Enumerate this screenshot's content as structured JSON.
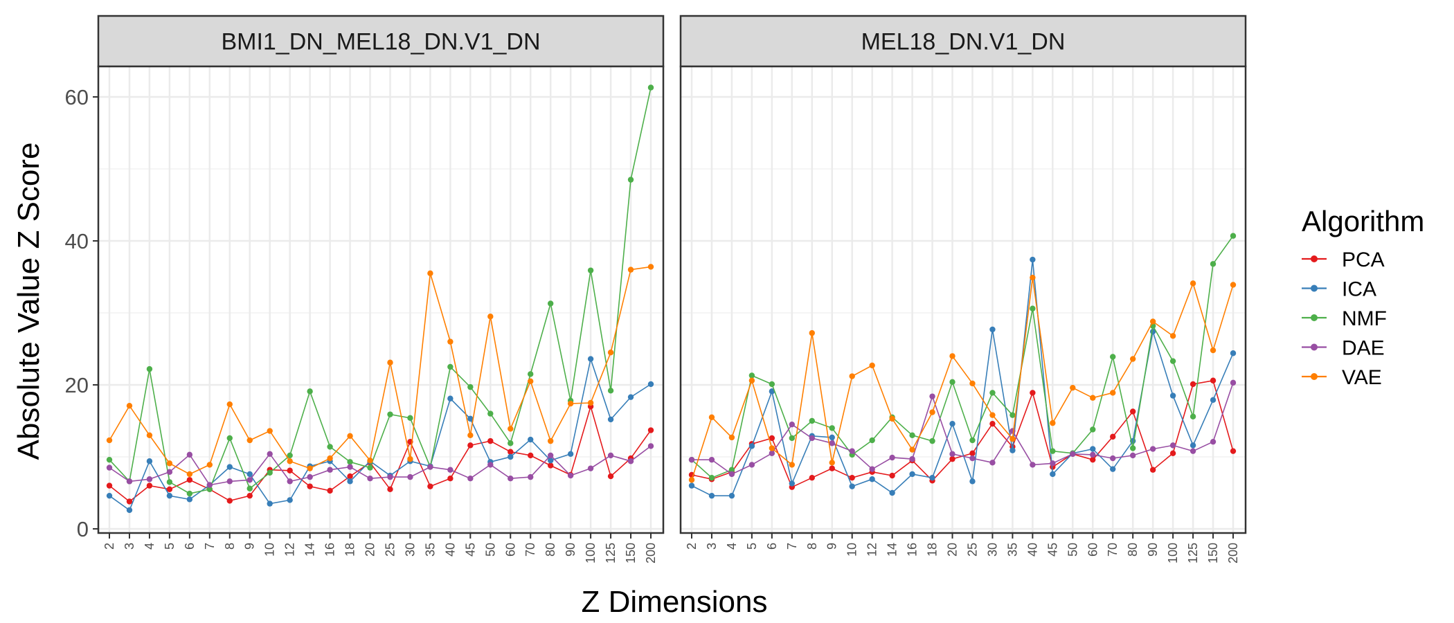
{
  "chart_data": {
    "type": "line",
    "y_label": "Absolute Value Z Score",
    "x_label": "Z Dimensions",
    "y_range": [
      0,
      65
    ],
    "y_ticks": [
      0,
      20,
      40,
      60
    ],
    "grid": true,
    "legend": {
      "title": "Algorithm",
      "placement": "right"
    },
    "categories": [
      "2",
      "3",
      "4",
      "5",
      "6",
      "7",
      "8",
      "9",
      "10",
      "12",
      "14",
      "16",
      "18",
      "20",
      "25",
      "30",
      "35",
      "40",
      "45",
      "50",
      "60",
      "70",
      "80",
      "90",
      "100",
      "125",
      "150",
      "200"
    ],
    "series_meta": [
      {
        "name": "PCA",
        "color": "#e41a1c"
      },
      {
        "name": "ICA",
        "color": "#377eb8"
      },
      {
        "name": "NMF",
        "color": "#4daf4a"
      },
      {
        "name": "DAE",
        "color": "#984ea3"
      },
      {
        "name": "VAE",
        "color": "#ff7f00"
      }
    ],
    "panels": [
      {
        "title": "BMI1_DN_MEL18_DN.V1_DN",
        "series": [
          {
            "name": "PCA",
            "values": [
              6.0,
              3.8,
              6.0,
              5.5,
              6.8,
              5.5,
              3.9,
              4.6,
              8.2,
              8.1,
              5.9,
              5.3,
              7.3,
              9.2,
              5.5,
              12.1,
              5.9,
              7.0,
              11.6,
              12.2,
              10.7,
              10.2,
              8.8,
              7.5,
              17.0,
              7.3,
              9.8,
              13.7
            ]
          },
          {
            "name": "ICA",
            "values": [
              4.6,
              2.6,
              9.4,
              4.6,
              4.1,
              6.1,
              8.6,
              7.6,
              3.5,
              4.0,
              8.7,
              9.4,
              6.6,
              9.4,
              7.4,
              9.4,
              8.7,
              18.1,
              15.3,
              9.3,
              10.0,
              12.4,
              9.5,
              10.4,
              23.6,
              15.2,
              18.3,
              20.1
            ]
          },
          {
            "name": "NMF",
            "values": [
              9.6,
              6.6,
              22.2,
              6.5,
              4.9,
              5.5,
              12.6,
              5.6,
              7.8,
              10.2,
              19.1,
              11.4,
              9.3,
              8.5,
              15.9,
              15.4,
              8.6,
              22.5,
              19.7,
              16.0,
              11.9,
              21.5,
              31.3,
              17.8,
              35.9,
              19.2,
              48.5,
              61.3
            ]
          },
          {
            "name": "DAE",
            "values": [
              8.5,
              6.6,
              6.9,
              7.9,
              10.3,
              6.1,
              6.6,
              6.8,
              10.4,
              6.6,
              7.2,
              8.2,
              8.6,
              7.0,
              7.2,
              7.2,
              8.6,
              8.2,
              7.0,
              8.9,
              7.0,
              7.2,
              10.2,
              7.4,
              8.4,
              10.2,
              9.4,
              11.5
            ]
          },
          {
            "name": "VAE",
            "values": [
              12.3,
              17.1,
              13.0,
              9.1,
              7.6,
              8.9,
              17.3,
              12.3,
              13.6,
              9.4,
              8.4,
              9.8,
              12.9,
              9.5,
              23.1,
              9.7,
              35.5,
              26.0,
              13.0,
              29.5,
              13.9,
              20.5,
              12.2,
              17.4,
              17.5,
              24.5,
              36.0,
              36.4
            ]
          }
        ]
      },
      {
        "title": "MEL18_DN.V1_DN",
        "series": [
          {
            "name": "PCA",
            "values": [
              7.5,
              6.9,
              7.9,
              11.8,
              12.6,
              5.8,
              7.1,
              8.4,
              7.1,
              7.9,
              7.4,
              9.5,
              6.7,
              9.7,
              10.5,
              14.6,
              11.4,
              18.9,
              8.6,
              10.4,
              9.6,
              12.8,
              16.3,
              8.2,
              10.5,
              20.1,
              20.6,
              10.8
            ]
          },
          {
            "name": "ICA",
            "values": [
              6.0,
              4.6,
              4.6,
              11.5,
              19.1,
              6.3,
              12.9,
              12.7,
              5.9,
              6.9,
              5.0,
              7.6,
              7.1,
              14.6,
              6.6,
              27.7,
              10.9,
              37.4,
              7.6,
              10.5,
              11.1,
              8.3,
              12.2,
              27.4,
              18.5,
              11.6,
              17.9,
              24.4
            ]
          },
          {
            "name": "NMF",
            "values": [
              9.6,
              7.1,
              8.2,
              21.3,
              20.1,
              12.6,
              15.0,
              14.0,
              10.3,
              12.3,
              15.5,
              13.0,
              12.2,
              20.4,
              12.3,
              18.9,
              15.8,
              30.6,
              10.8,
              10.5,
              13.8,
              23.9,
              11.2,
              28.2,
              23.3,
              15.6,
              36.8,
              40.7
            ]
          },
          {
            "name": "DAE",
            "values": [
              9.6,
              9.6,
              7.6,
              8.9,
              10.5,
              14.5,
              12.6,
              11.9,
              10.8,
              8.3,
              9.9,
              9.7,
              18.4,
              10.4,
              9.8,
              9.2,
              13.6,
              8.9,
              9.1,
              10.4,
              10.3,
              9.8,
              10.2,
              11.1,
              11.6,
              10.8,
              12.1,
              20.3
            ]
          },
          {
            "name": "VAE",
            "values": [
              6.8,
              15.5,
              12.7,
              20.6,
              11.2,
              8.9,
              27.2,
              9.2,
              21.2,
              22.7,
              15.3,
              11.0,
              16.2,
              24.0,
              20.2,
              15.8,
              12.5,
              34.9,
              14.7,
              19.6,
              18.2,
              18.9,
              23.6,
              28.8,
              26.8,
              34.1,
              24.8,
              33.9
            ]
          }
        ]
      }
    ]
  }
}
